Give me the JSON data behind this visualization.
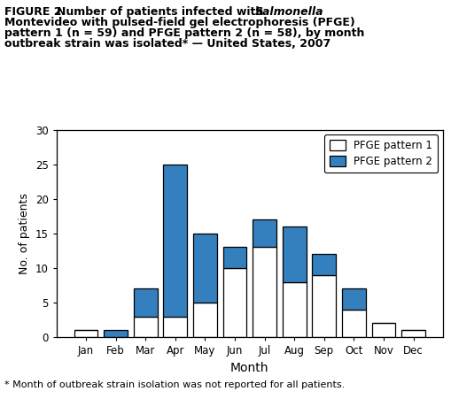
{
  "months": [
    "Jan",
    "Feb",
    "Mar",
    "Apr",
    "May",
    "Jun",
    "Jul",
    "Aug",
    "Sep",
    "Oct",
    "Nov",
    "Dec"
  ],
  "pattern1": [
    1,
    0,
    3,
    3,
    5,
    10,
    13,
    8,
    9,
    4,
    2,
    1
  ],
  "pattern2": [
    0,
    1,
    4,
    22,
    10,
    3,
    4,
    8,
    3,
    3,
    0,
    0
  ],
  "color_pattern1": "#ffffff",
  "color_pattern2": "#3480be",
  "edgecolor": "#000000",
  "ylabel": "No. of patients",
  "xlabel": "Month",
  "ylim": [
    0,
    30
  ],
  "yticks": [
    0,
    5,
    10,
    15,
    20,
    25,
    30
  ],
  "legend_label1": "PFGE pattern 1",
  "legend_label2": "PFGE pattern 2",
  "footnote": "* Month of outbreak strain isolation was not reported for all patients.",
  "title_prefix": "FIGURE 2. ",
  "title_normal1": "Number of patients infected with ",
  "title_italic": "Salmonella",
  "title_line2": "Montevideo with pulsed-field gel electrophoresis (PFGE)",
  "title_line3": "pattern 1 (n = 59) and PFGE pattern 2 (n = 58), by month",
  "title_line4": "outbreak strain was isolated* — United States, 2007",
  "title_fontsize": 9,
  "tick_fontsize": 8.5,
  "ylabel_fontsize": 9,
  "xlabel_fontsize": 10,
  "footnote_fontsize": 8,
  "legend_fontsize": 8.5
}
